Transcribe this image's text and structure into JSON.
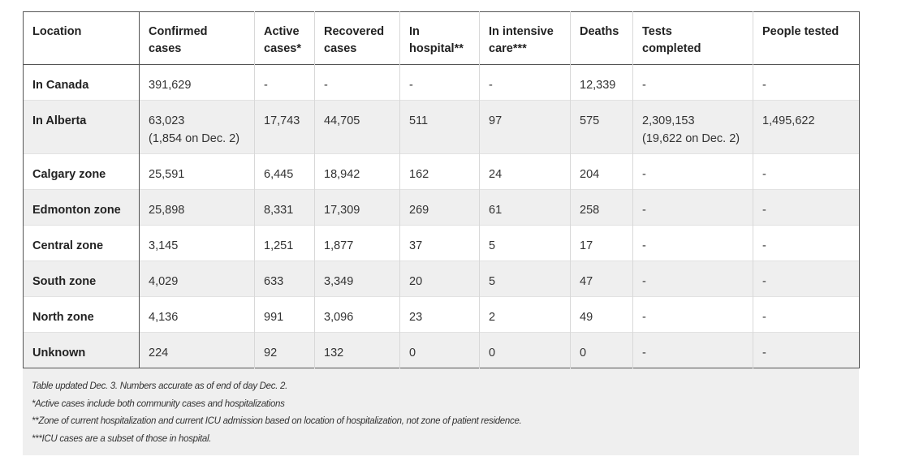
{
  "table": {
    "headers": [
      [
        "Location",
        ""
      ],
      [
        "Confirmed",
        "cases"
      ],
      [
        "Active",
        "cases*"
      ],
      [
        "Recovered",
        "cases"
      ],
      [
        "In",
        "hospital**"
      ],
      [
        "In intensive",
        "care***"
      ],
      [
        "Deaths",
        ""
      ],
      [
        "Tests",
        "completed"
      ],
      [
        "People tested",
        ""
      ]
    ],
    "rows": [
      {
        "location": "In Canada",
        "confirmed": "391,629",
        "confirmed_note": "",
        "active": "-",
        "recovered": "-",
        "hospital": "-",
        "icu": "-",
        "deaths": "12,339",
        "tests": "-",
        "tests_note": "",
        "people": "-"
      },
      {
        "location": "In Alberta",
        "confirmed": "63,023",
        "confirmed_note": "(1,854 on Dec. 2)",
        "active": "17,743",
        "recovered": "44,705",
        "hospital": "511",
        "icu": "97",
        "deaths": "575",
        "tests": "2,309,153",
        "tests_note": "(19,622 on Dec. 2)",
        "people": "1,495,622"
      },
      {
        "location": "Calgary zone",
        "confirmed": "25,591",
        "confirmed_note": "",
        "active": "6,445",
        "recovered": "18,942",
        "hospital": "162",
        "icu": "24",
        "deaths": "204",
        "tests": "-",
        "tests_note": "",
        "people": "-"
      },
      {
        "location": "Edmonton zone",
        "confirmed": "25,898",
        "confirmed_note": "",
        "active": "8,331",
        "recovered": "17,309",
        "hospital": "269",
        "icu": "61",
        "deaths": "258",
        "tests": "-",
        "tests_note": "",
        "people": "-"
      },
      {
        "location": "Central zone",
        "confirmed": "3,145",
        "confirmed_note": "",
        "active": "1,251",
        "recovered": "1,877",
        "hospital": "37",
        "icu": "5",
        "deaths": "17",
        "tests": "-",
        "tests_note": "",
        "people": "-"
      },
      {
        "location": "South zone",
        "confirmed": "4,029",
        "confirmed_note": "",
        "active": "633",
        "recovered": "3,349",
        "hospital": "20",
        "icu": "5",
        "deaths": "47",
        "tests": "-",
        "tests_note": "",
        "people": "-"
      },
      {
        "location": "North zone",
        "confirmed": "4,136",
        "confirmed_note": "",
        "active": "991",
        "recovered": "3,096",
        "hospital": "23",
        "icu": "2",
        "deaths": "49",
        "tests": "-",
        "tests_note": "",
        "people": "-"
      },
      {
        "location": "Unknown",
        "confirmed": "224",
        "confirmed_note": "",
        "active": "92",
        "recovered": "132",
        "hospital": "0",
        "icu": "0",
        "deaths": "0",
        "tests": "-",
        "tests_note": "",
        "people": "-"
      }
    ]
  },
  "notes": [
    "Table updated Dec. 3. Numbers accurate as of end of day Dec. 2.",
    "*Active cases include both community cases and hospitalizations",
    "**Zone of current hospitalization and current ICU admission based on location of hospitalization, not zone of patient residence.",
    "***ICU cases are a subset of those in hospital."
  ]
}
